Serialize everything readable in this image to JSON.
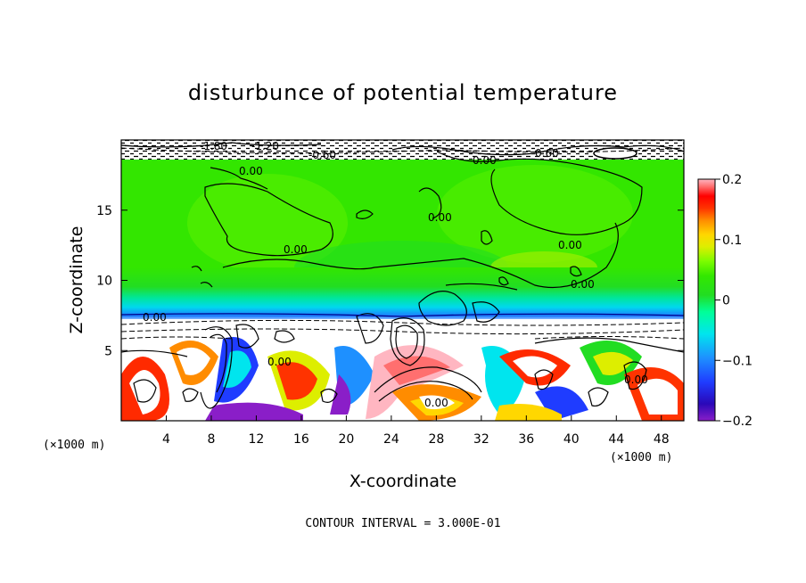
{
  "chart_data": {
    "type": "heatmap",
    "title": "disturbunce of potential temperature",
    "xlabel": "X-coordinate",
    "ylabel": "Z-coordinate",
    "x_unit": "(×1000 m)",
    "x_unit_right": "(×1000 m)",
    "xlim": [
      0,
      50
    ],
    "ylim": [
      0,
      20
    ],
    "x_ticks": [
      "4",
      "8",
      "12",
      "16",
      "20",
      "24",
      "28",
      "32",
      "36",
      "40",
      "44",
      "48"
    ],
    "y_ticks": [
      "5",
      "10",
      "15"
    ],
    "colorbar": {
      "range": [
        -0.2,
        0.2
      ],
      "tick_labels": [
        "0.2",
        "0.1",
        "0",
        "−0.1",
        "−0.2"
      ],
      "colors": [
        "#8a1ec8",
        "#2a08b8",
        "#1f3cff",
        "#1e90ff",
        "#00e5ee",
        "#00ff99",
        "#22dd22",
        "#33e800",
        "#7cfc00",
        "#ddee00",
        "#ffd700",
        "#ff8c00",
        "#ff3300",
        "#ff0000",
        "#ff6f6f",
        "#ffb6c1"
      ]
    },
    "contour_interval_label": "CONTOUR INTERVAL = 3.000E-01",
    "contour_labels": [
      "0.00",
      "0.00",
      "0.00",
      "0.00",
      "0.00",
      "0.00",
      "0.00",
      "0.00",
      "-0.60",
      "0.60",
      "-1.80",
      "-1.20",
      "0.00",
      "0.00"
    ],
    "grid": false
  }
}
